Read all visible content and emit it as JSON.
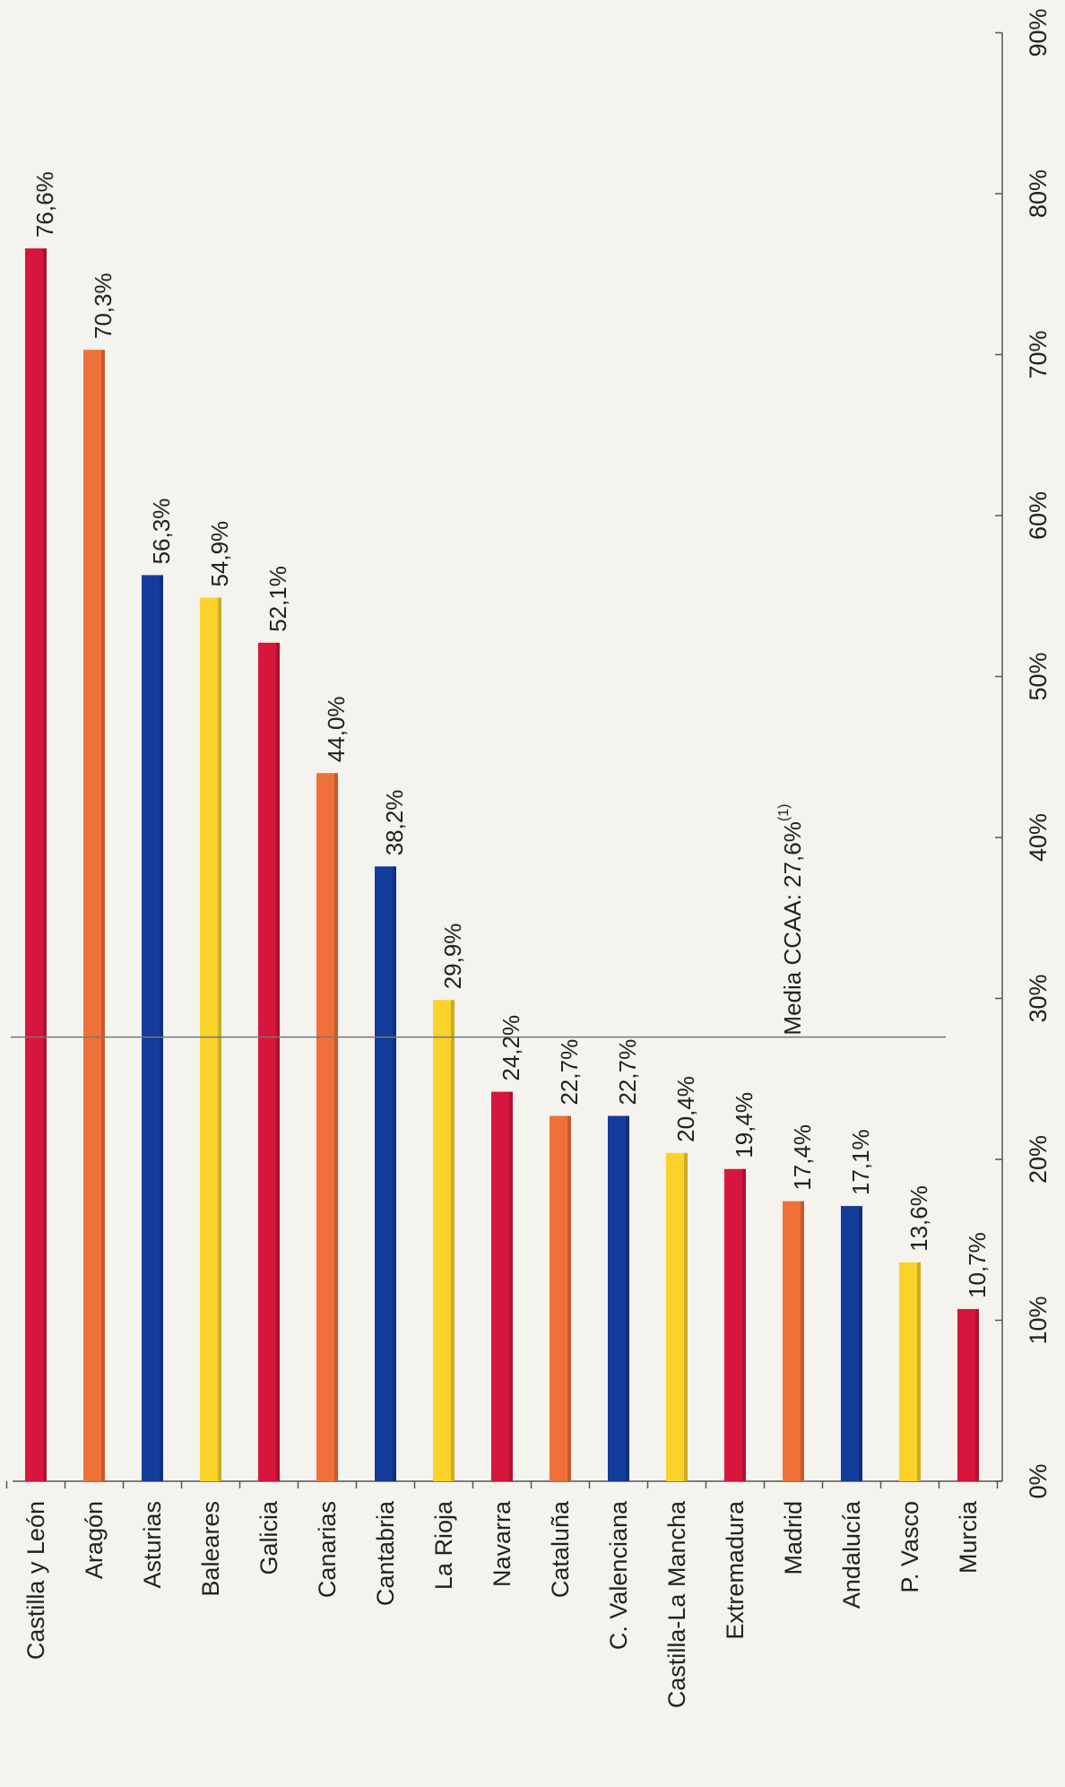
{
  "chart_data": {
    "type": "bar",
    "orientation": "horizontal",
    "title": "",
    "xlabel": "",
    "ylabel": "",
    "xlim": [
      0,
      90
    ],
    "x_ticks": [
      {
        "value": 0,
        "label": "0%"
      },
      {
        "value": 10,
        "label": "10%"
      },
      {
        "value": 20,
        "label": "20%"
      },
      {
        "value": 30,
        "label": "30%"
      },
      {
        "value": 40,
        "label": "40%"
      },
      {
        "value": 50,
        "label": "50%"
      },
      {
        "value": 60,
        "label": "60%"
      },
      {
        "value": 70,
        "label": "70%"
      },
      {
        "value": 80,
        "label": "80%"
      },
      {
        "value": 90,
        "label": "90%"
      }
    ],
    "grid": false,
    "legend": "none",
    "colors": {
      "red": "#d6163c",
      "orange": "#f0703a",
      "blue": "#143c9a",
      "yellow": "#fbd22a"
    },
    "bars": [
      {
        "category": "Castilla y León",
        "value": 76.6,
        "label": "76,6%",
        "color": "#d6163c"
      },
      {
        "category": "Aragón",
        "value": 70.3,
        "label": "70,3%",
        "color": "#f0703a"
      },
      {
        "category": "Asturias",
        "value": 56.3,
        "label": "56,3%",
        "color": "#143c9a"
      },
      {
        "category": "Baleares",
        "value": 54.9,
        "label": "54,9%",
        "color": "#fbd22a"
      },
      {
        "category": "Galicia",
        "value": 52.1,
        "label": "52,1%",
        "color": "#d6163c"
      },
      {
        "category": "Canarias",
        "value": 44.0,
        "label": "44,0%",
        "color": "#f0703a"
      },
      {
        "category": "Cantabria",
        "value": 38.2,
        "label": "38,2%",
        "color": "#143c9a"
      },
      {
        "category": "La Rioja",
        "value": 29.9,
        "label": "29,9%",
        "color": "#fbd22a"
      },
      {
        "category": "Navarra",
        "value": 24.2,
        "label": "24,2%",
        "color": "#d6163c"
      },
      {
        "category": "Cataluña",
        "value": 22.7,
        "label": "22,7%",
        "color": "#f0703a"
      },
      {
        "category": "C. Valenciana",
        "value": 22.7,
        "label": "22,7%",
        "color": "#143c9a"
      },
      {
        "category": "Castilla-La Mancha",
        "value": 20.4,
        "label": "20,4%",
        "color": "#fbd22a"
      },
      {
        "category": "Extremadura",
        "value": 19.4,
        "label": "19,4%",
        "color": "#d6163c"
      },
      {
        "category": "Madrid",
        "value": 17.4,
        "label": "17,4%",
        "color": "#f0703a"
      },
      {
        "category": "Andalucía",
        "value": 17.1,
        "label": "17,1%",
        "color": "#143c9a"
      },
      {
        "category": "P. Vasco",
        "value": 13.6,
        "label": "13,6%",
        "color": "#fbd22a"
      },
      {
        "category": "Murcia",
        "value": 10.7,
        "label": "10,7%",
        "color": "#d6163c"
      }
    ],
    "reference_line": {
      "value": 27.6,
      "label": "Media CCAA: 27,6%",
      "superscript": "(1)"
    }
  }
}
